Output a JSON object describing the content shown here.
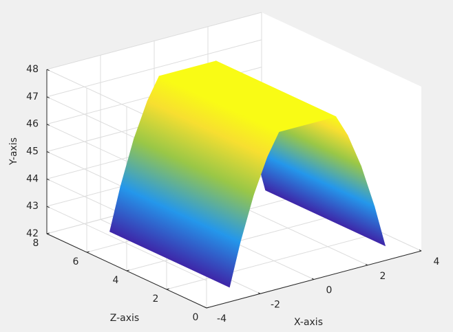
{
  "chart_data": {
    "type": "surface",
    "x": [
      -2.4,
      -2,
      -1.5,
      -1,
      -0.56,
      0.5,
      1.56,
      2,
      2.5,
      3,
      3.4
    ],
    "values": [
      42.0,
      43.54,
      45.15,
      46.4,
      47.2,
      47.2,
      47.2,
      46.4,
      45.15,
      43.54,
      42.0
    ],
    "z": [
      1,
      7
    ],
    "x_label": "X-axis",
    "y_label": "Y-axis",
    "z_label": "Z-axis",
    "xlim": [
      -4,
      4
    ],
    "xticks": [
      -4,
      -2,
      0,
      2,
      4
    ],
    "ylim": [
      42,
      48
    ],
    "yticks": [
      42,
      43,
      44,
      45,
      46,
      47,
      48
    ],
    "zlim": [
      0,
      8
    ],
    "zticks": [
      0,
      2,
      4,
      6,
      8
    ],
    "grid": true,
    "colormap": [
      "#3e26a8",
      "#4852f4",
      "#2e87f7",
      "#12b1d6",
      "#37c897",
      "#abc739",
      "#fec338",
      "#f5e82e",
      "#f9fb15"
    ]
  }
}
